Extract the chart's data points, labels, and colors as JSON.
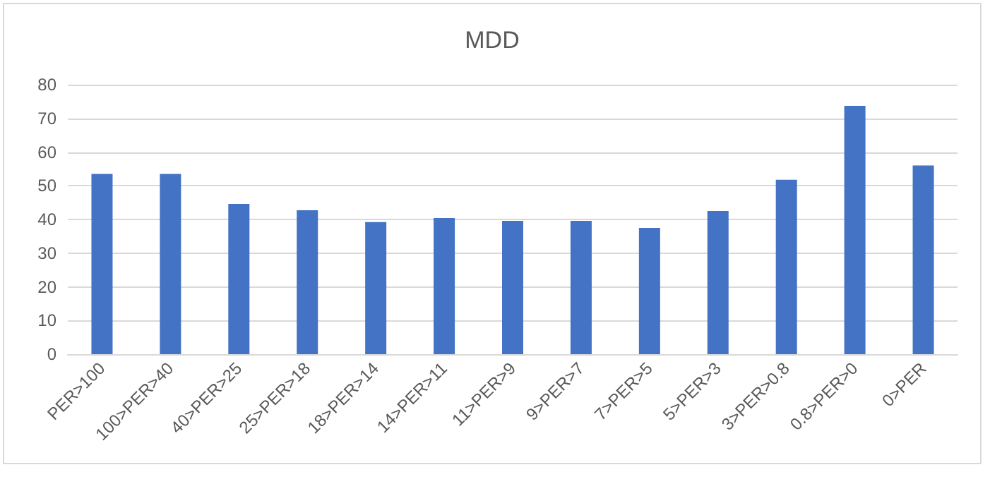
{
  "chart_data": {
    "type": "bar",
    "title": "MDD",
    "categories": [
      "PER>100",
      "100>PER>40",
      "40>PER>25",
      "25>PER>18",
      "18>PER>14",
      "14>PER>11",
      "11>PER>9",
      "9>PER>7",
      "7>PER>5",
      "5>PER>3",
      "3>PER>0.8",
      "0.8>PER>0",
      "0>PER"
    ],
    "values": [
      53.5,
      53.5,
      44.6,
      42.7,
      39.2,
      40.4,
      39.6,
      39.6,
      37.5,
      42.5,
      51.8,
      73.7,
      56
    ],
    "color": "#4472c4",
    "ylim": [
      0,
      80
    ],
    "yticks": [
      0,
      10,
      20,
      30,
      40,
      50,
      60,
      70,
      80
    ],
    "grid": "y"
  }
}
